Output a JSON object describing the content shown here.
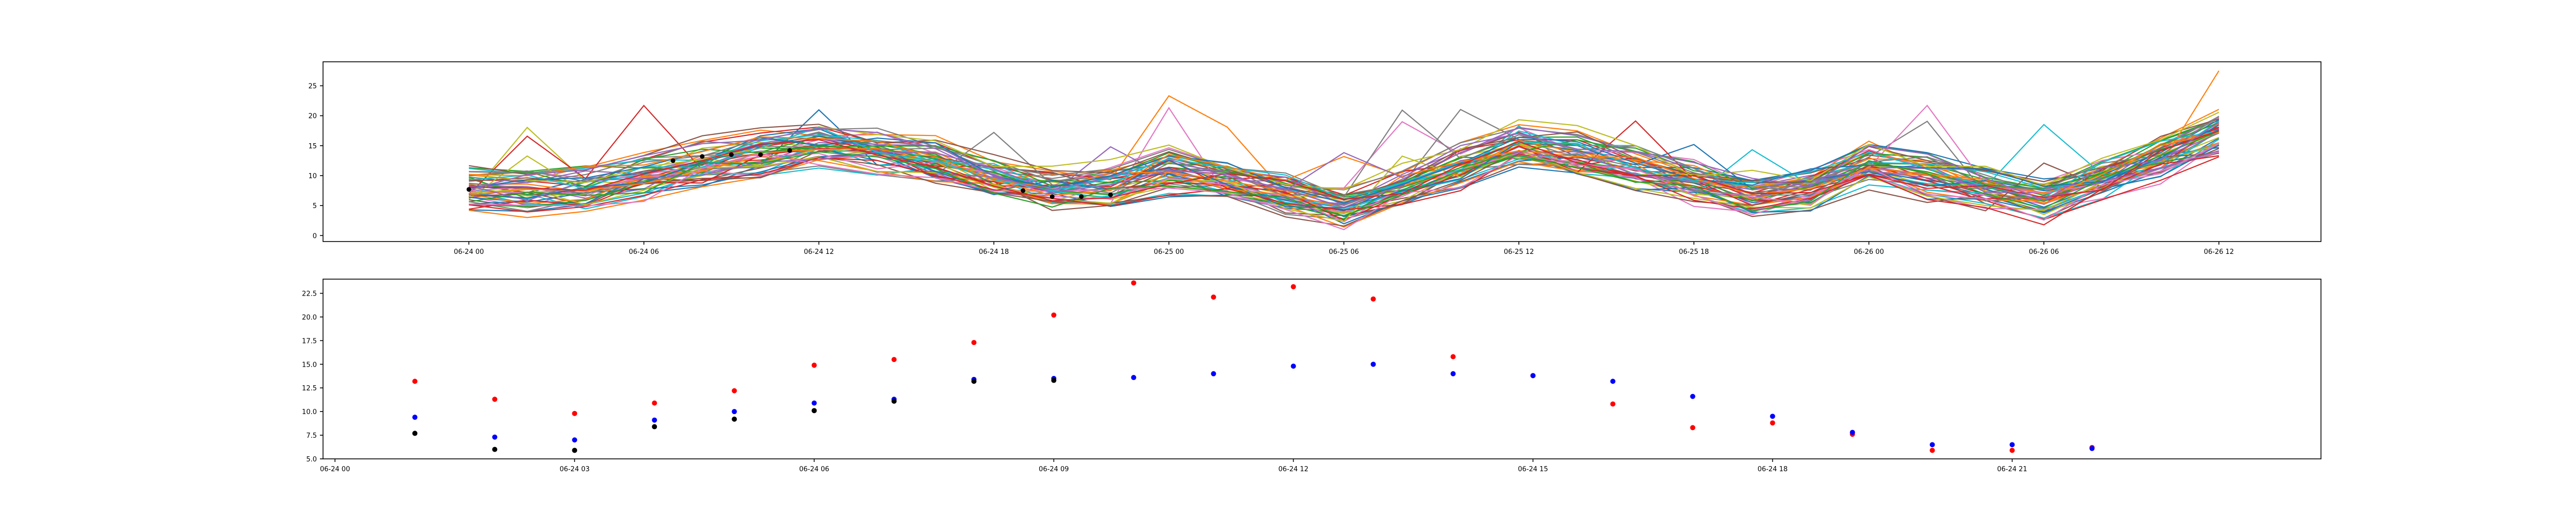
{
  "chart_data": [
    {
      "type": "line",
      "title": "",
      "xlabel": "",
      "ylabel": "",
      "x_start": "2023-06-24T00:00",
      "x_end": "2023-06-26T12:00",
      "xlim": [
        "2023-06-23T19:00",
        "2023-06-26T15:30"
      ],
      "ylim": [
        -1,
        29
      ],
      "x_tick_labels": [
        "06-24 00",
        "06-24 06",
        "06-24 12",
        "06-24 18",
        "06-25 00",
        "06-25 06",
        "06-25 12",
        "06-25 18",
        "06-26 00",
        "06-26 06",
        "06-26 12"
      ],
      "y_tick_labels": [
        "0",
        "5",
        "10",
        "15",
        "20",
        "25"
      ],
      "y_ticks": [
        0,
        5,
        10,
        15,
        20,
        25
      ],
      "series_count": 55,
      "colors": [
        "#1f77b4",
        "#ff7f0e",
        "#2ca02c",
        "#d62728",
        "#9467bd",
        "#8c564b",
        "#e377c2",
        "#7f7f7f",
        "#bcbd22",
        "#17becf"
      ],
      "ensemble_mean": [
        {
          "x": "2023-06-24T00:00",
          "y": 8
        },
        {
          "x": "2023-06-24T03:00",
          "y": 7
        },
        {
          "x": "2023-06-24T06:00",
          "y": 10
        },
        {
          "x": "2023-06-24T09:00",
          "y": 13
        },
        {
          "x": "2023-06-24T12:00",
          "y": 15
        },
        {
          "x": "2023-06-24T15:00",
          "y": 13.5
        },
        {
          "x": "2023-06-24T18:00",
          "y": 10
        },
        {
          "x": "2023-06-24T21:00",
          "y": 7
        },
        {
          "x": "2023-06-25T00:00",
          "y": 11
        },
        {
          "x": "2023-06-25T03:00",
          "y": 8
        },
        {
          "x": "2023-06-25T06:00",
          "y": 5
        },
        {
          "x": "2023-06-25T09:00",
          "y": 10
        },
        {
          "x": "2023-06-25T12:00",
          "y": 15
        },
        {
          "x": "2023-06-25T15:00",
          "y": 13
        },
        {
          "x": "2023-06-25T18:00",
          "y": 9
        },
        {
          "x": "2023-06-25T21:00",
          "y": 6
        },
        {
          "x": "2023-06-26T00:00",
          "y": 12
        },
        {
          "x": "2023-06-26T03:00",
          "y": 9
        },
        {
          "x": "2023-06-26T06:00",
          "y": 6
        },
        {
          "x": "2023-06-26T09:00",
          "y": 11
        },
        {
          "x": "2023-06-26T12:00",
          "y": 17
        }
      ],
      "observed_points": [
        {
          "x": "2023-06-24T00:00",
          "y": 7.7
        },
        {
          "x": "2023-06-24T07:00",
          "y": 12.5
        },
        {
          "x": "2023-06-24T08:00",
          "y": 13.2
        },
        {
          "x": "2023-06-24T09:00",
          "y": 13.5
        },
        {
          "x": "2023-06-24T10:00",
          "y": 13.5
        },
        {
          "x": "2023-06-24T11:00",
          "y": 14.2
        },
        {
          "x": "2023-06-24T19:00",
          "y": 7.5
        },
        {
          "x": "2023-06-24T20:00",
          "y": 6.5
        },
        {
          "x": "2023-06-24T21:00",
          "y": 6.5
        },
        {
          "x": "2023-06-24T22:00",
          "y": 6.8
        }
      ]
    },
    {
      "type": "scatter",
      "title": "",
      "xlabel": "",
      "ylabel": "",
      "xlim": [
        "2023-06-23T23:51",
        "2023-06-25T00:52"
      ],
      "ylim": [
        5,
        24
      ],
      "x_tick_labels": [
        "06-24 00",
        "06-24 03",
        "06-24 06",
        "06-24 09",
        "06-24 12",
        "06-24 15",
        "06-24 18",
        "06-24 21"
      ],
      "y_tick_labels": [
        "5.0",
        "7.5",
        "10.0",
        "12.5",
        "15.0",
        "17.5",
        "20.0",
        "22.5"
      ],
      "y_ticks": [
        5,
        7.5,
        10,
        12.5,
        15,
        17.5,
        20,
        22.5
      ],
      "series": [
        {
          "color": "#ff0000",
          "points": [
            {
              "x": "2023-06-24T01:00",
              "y": 13.2
            },
            {
              "x": "2023-06-24T02:00",
              "y": 11.3
            },
            {
              "x": "2023-06-24T03:00",
              "y": 9.8
            },
            {
              "x": "2023-06-24T04:00",
              "y": 10.9
            },
            {
              "x": "2023-06-24T05:00",
              "y": 12.2
            },
            {
              "x": "2023-06-24T06:00",
              "y": 14.9
            },
            {
              "x": "2023-06-24T07:00",
              "y": 15.5
            },
            {
              "x": "2023-06-24T08:00",
              "y": 17.3
            },
            {
              "x": "2023-06-24T09:00",
              "y": 20.2
            },
            {
              "x": "2023-06-24T10:00",
              "y": 23.6
            },
            {
              "x": "2023-06-24T11:00",
              "y": 22.1
            },
            {
              "x": "2023-06-24T12:00",
              "y": 23.2
            },
            {
              "x": "2023-06-24T13:00",
              "y": 21.9
            },
            {
              "x": "2023-06-24T14:00",
              "y": 15.8
            },
            {
              "x": "2023-06-24T15:00",
              "y": 13.8
            },
            {
              "x": "2023-06-24T16:00",
              "y": 10.8
            },
            {
              "x": "2023-06-24T17:00",
              "y": 8.3
            },
            {
              "x": "2023-06-24T18:00",
              "y": 8.8
            },
            {
              "x": "2023-06-24T19:00",
              "y": 7.6
            },
            {
              "x": "2023-06-24T20:00",
              "y": 5.9
            },
            {
              "x": "2023-06-24T21:00",
              "y": 5.9
            },
            {
              "x": "2023-06-24T22:00",
              "y": 6.2
            }
          ]
        },
        {
          "color": "#0000ff",
          "points": [
            {
              "x": "2023-06-24T01:00",
              "y": 9.4
            },
            {
              "x": "2023-06-24T02:00",
              "y": 7.3
            },
            {
              "x": "2023-06-24T03:00",
              "y": 7.0
            },
            {
              "x": "2023-06-24T04:00",
              "y": 9.1
            },
            {
              "x": "2023-06-24T05:00",
              "y": 10.0
            },
            {
              "x": "2023-06-24T06:00",
              "y": 10.9
            },
            {
              "x": "2023-06-24T07:00",
              "y": 11.3
            },
            {
              "x": "2023-06-24T08:00",
              "y": 13.4
            },
            {
              "x": "2023-06-24T09:00",
              "y": 13.5
            },
            {
              "x": "2023-06-24T10:00",
              "y": 13.6
            },
            {
              "x": "2023-06-24T11:00",
              "y": 14.0
            },
            {
              "x": "2023-06-24T12:00",
              "y": 14.8
            },
            {
              "x": "2023-06-24T13:00",
              "y": 15.0
            },
            {
              "x": "2023-06-24T14:00",
              "y": 14.0
            },
            {
              "x": "2023-06-24T15:00",
              "y": 13.8
            },
            {
              "x": "2023-06-24T16:00",
              "y": 13.2
            },
            {
              "x": "2023-06-24T17:00",
              "y": 11.6
            },
            {
              "x": "2023-06-24T18:00",
              "y": 9.5
            },
            {
              "x": "2023-06-24T19:00",
              "y": 7.8
            },
            {
              "x": "2023-06-24T20:00",
              "y": 6.5
            },
            {
              "x": "2023-06-24T21:00",
              "y": 6.5
            },
            {
              "x": "2023-06-24T22:00",
              "y": 6.1
            }
          ]
        },
        {
          "color": "#000000",
          "points": [
            {
              "x": "2023-06-24T01:00",
              "y": 7.7
            },
            {
              "x": "2023-06-24T02:00",
              "y": 6.0
            },
            {
              "x": "2023-06-24T03:00",
              "y": 5.9
            },
            {
              "x": "2023-06-24T04:00",
              "y": 8.4
            },
            {
              "x": "2023-06-24T05:00",
              "y": 9.2
            },
            {
              "x": "2023-06-24T06:00",
              "y": 10.1
            },
            {
              "x": "2023-06-24T07:00",
              "y": 11.1
            },
            {
              "x": "2023-06-24T08:00",
              "y": 13.2
            },
            {
              "x": "2023-06-24T09:00",
              "y": 13.3
            }
          ]
        }
      ]
    }
  ]
}
